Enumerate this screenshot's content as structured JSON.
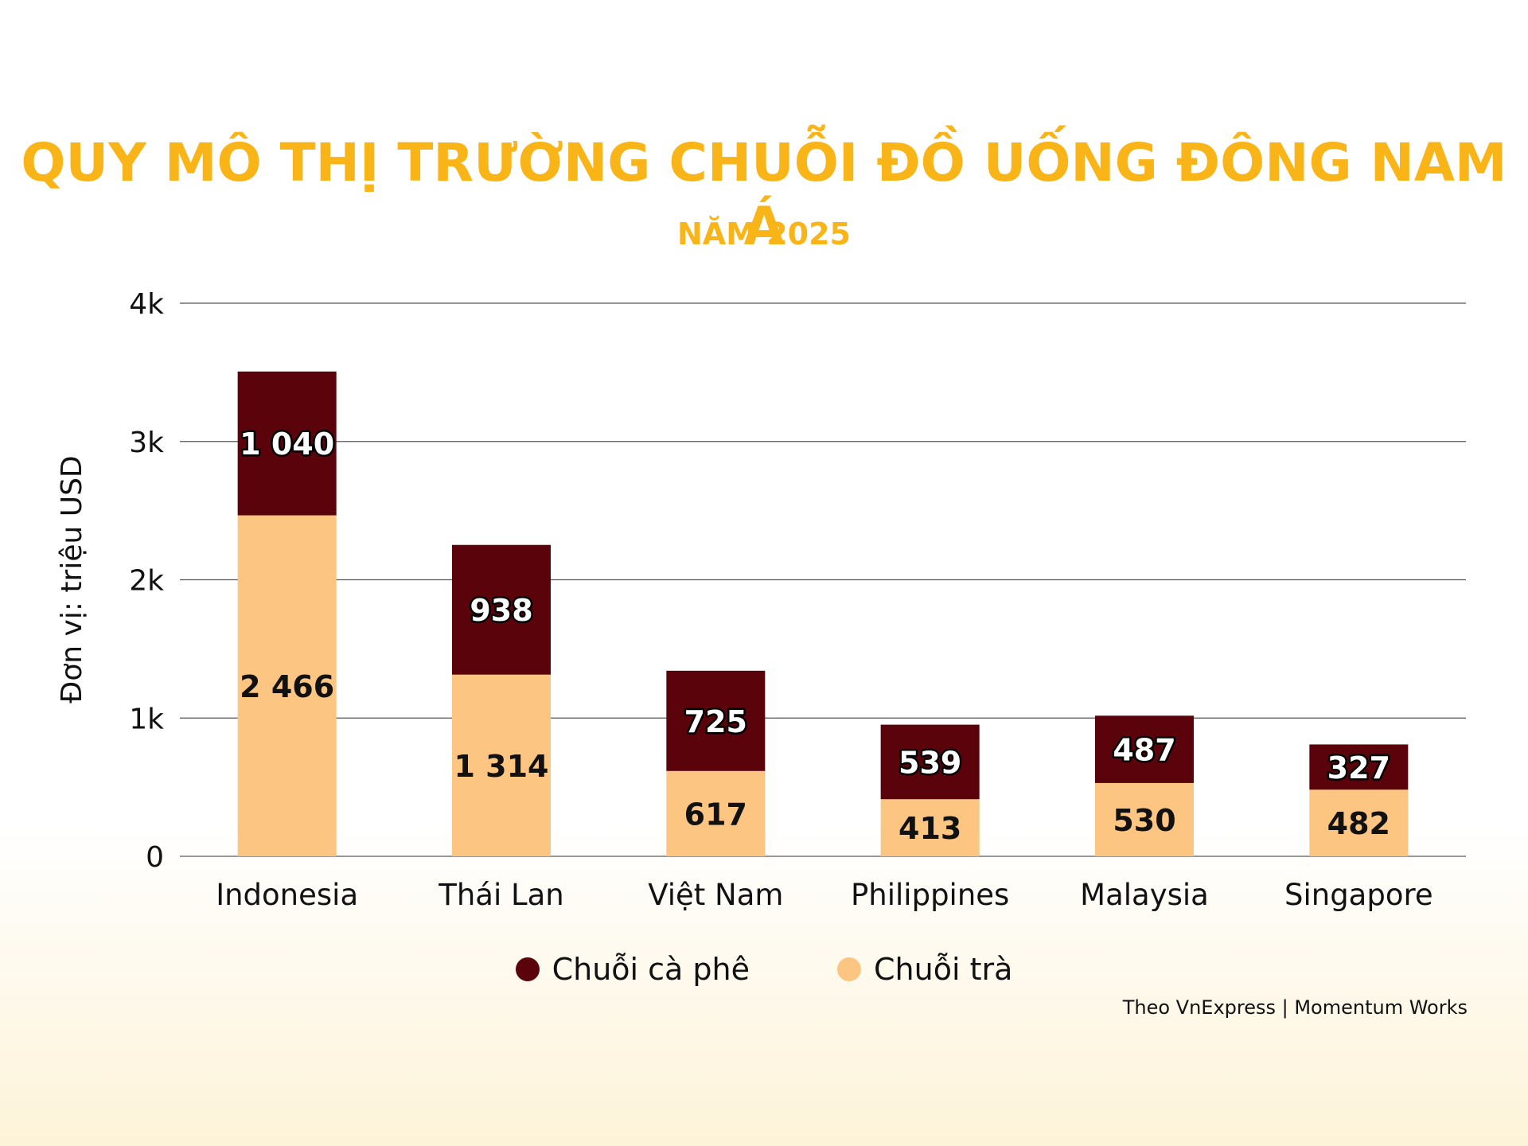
{
  "chart_data": {
    "type": "bar",
    "stacked": true,
    "title": "QUY MÔ THỊ TRƯỜNG CHUỖI ĐỒ UỐNG ĐÔNG NAM Á",
    "subtitle": "NĂM 2025",
    "ylabel": "Đơn vị: triệu USD",
    "xlabel": "",
    "ylim": [
      0,
      4000
    ],
    "yticks": [
      0,
      1000,
      2000,
      3000,
      4000
    ],
    "ytick_labels": [
      "0",
      "1k",
      "2k",
      "3k",
      "4k"
    ],
    "grid": true,
    "legend_position": "bottom",
    "categories": [
      "Indonesia",
      "Thái Lan",
      "Việt Nam",
      "Philippines",
      "Malaysia",
      "Singapore"
    ],
    "series": [
      {
        "name": "Chuỗi trà",
        "color": "#fcc581",
        "values": [
          2466,
          1314,
          617,
          413,
          530,
          482
        ],
        "labels": [
          "2 466",
          "1 314",
          "617",
          "413",
          "530",
          "482"
        ]
      },
      {
        "name": "Chuỗi cà phê",
        "color": "#5a030b",
        "values": [
          1040,
          938,
          725,
          539,
          487,
          327
        ],
        "labels": [
          "1 040",
          "938",
          "725",
          "539",
          "487",
          "327"
        ]
      }
    ]
  },
  "legend": {
    "coffee_label": "Chuỗi cà phê",
    "tea_label": "Chuỗi trà",
    "coffee_color": "#5a030b",
    "tea_color": "#fcc581"
  },
  "source": "Theo VnExpress | Momentum Works",
  "title_color": "#f9b418"
}
